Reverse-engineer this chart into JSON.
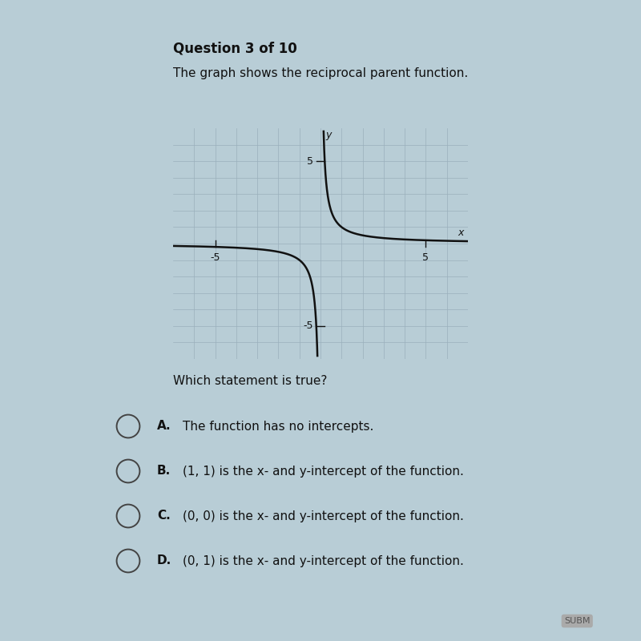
{
  "title": "Question 3 of 10",
  "description": "The graph shows the reciprocal parent function.",
  "question": "Which statement is true?",
  "option_labels": [
    "A.",
    "B.",
    "C.",
    "D."
  ],
  "option_texts": [
    "The function has no intercepts.",
    "(1, 1) is the x- and y-intercept of the function.",
    "(0, 0) is the x- and y-intercept of the function.",
    "(0, 1) is the x- and y-intercept of the function."
  ],
  "graph_xlim": [
    -7,
    7
  ],
  "graph_ylim": [
    -7,
    7
  ],
  "graph_xticks": [
    -5,
    5
  ],
  "graph_yticks": [
    -5,
    5
  ],
  "background_color": "#b8cdd6",
  "plot_background": "#cddde6",
  "curve_color": "#111111",
  "axis_color": "#111111",
  "grid_color": "#9ab0bc",
  "curve_linewidth": 1.8,
  "title_fontsize": 12,
  "body_fontsize": 11,
  "option_fontsize": 11
}
